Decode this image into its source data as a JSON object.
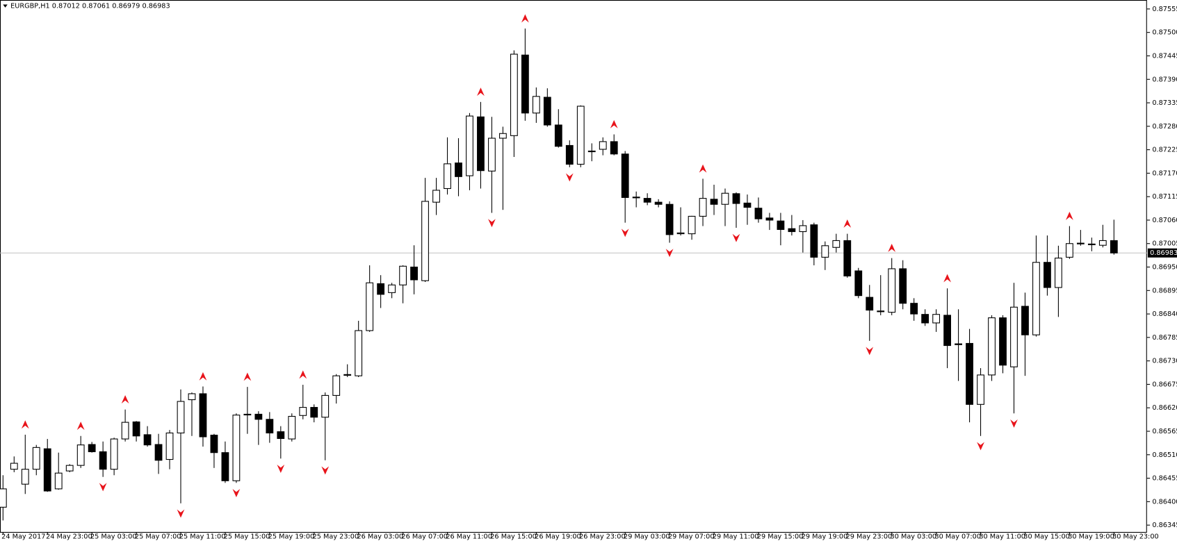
{
  "chart_data": {
    "type": "candlestick",
    "symbol": "EURGBP,H1",
    "categories": [
      "24 May 2017",
      null,
      null,
      null,
      "24 May 23:00",
      null,
      null,
      null,
      "25 May 03:00",
      null,
      null,
      null,
      "25 May 07:00",
      null,
      null,
      null,
      "25 May 11:00",
      null,
      null,
      null,
      "25 May 15:00",
      null,
      null,
      null,
      "25 May 19:00",
      null,
      null,
      null,
      "25 May 23:00",
      null,
      null,
      null,
      "26 May 03:00",
      null,
      null,
      null,
      "26 May 07:00",
      null,
      null,
      null,
      "26 May 11:00",
      null,
      null,
      null,
      "26 May 15:00",
      null,
      null,
      null,
      "26 May 19:00",
      null,
      null,
      null,
      "26 May 23:00",
      null,
      null,
      null,
      "29 May 03:00",
      null,
      null,
      null,
      "29 May 07:00",
      null,
      null,
      null,
      "29 May 11:00",
      null,
      null,
      null,
      "29 May 15:00",
      null,
      null,
      null,
      "29 May 19:00",
      null,
      null,
      null,
      "29 May 23:00",
      null,
      null,
      null,
      "30 May 03:00",
      null,
      null,
      null,
      "30 May 07:00",
      null,
      null,
      null,
      "30 May 11:00",
      null,
      null,
      null,
      "30 May 15:00",
      null,
      null,
      null,
      "30 May 19:00",
      null,
      null,
      null,
      "30 May 23:00"
    ],
    "open": [
      0.86387,
      0.86476,
      0.86441,
      0.86476,
      0.86524,
      0.8643,
      0.86472,
      0.86485,
      0.86534,
      0.86517,
      0.86476,
      0.86547,
      0.86587,
      0.86557,
      0.86534,
      0.86499,
      0.86561,
      0.86639,
      0.86653,
      0.86556,
      0.86515,
      0.86449,
      0.86605,
      0.86605,
      0.86593,
      0.86564,
      0.86547,
      0.86602,
      0.86621,
      0.86598,
      0.86649,
      0.86697,
      0.86695,
      0.86801,
      0.86911,
      0.8689,
      0.86908,
      0.8695,
      0.86918,
      0.87102,
      0.87134,
      0.87194,
      0.87164,
      0.87302,
      0.87175,
      0.87252,
      0.87258,
      0.87447,
      0.87311,
      0.87348,
      0.87283,
      0.87235,
      0.87191,
      0.87222,
      0.87226,
      0.87244,
      0.87215,
      0.87114,
      0.87111,
      0.87102,
      0.87097,
      0.87028,
      0.87028,
      0.87069,
      0.87109,
      0.87097,
      0.87122,
      0.871,
      0.87088,
      0.87065,
      0.87058,
      0.8704,
      0.87033,
      0.87049,
      0.86973,
      0.86996,
      0.87012,
      0.86941,
      0.86879,
      0.86847,
      0.86844,
      0.86946,
      0.86865,
      0.86839,
      0.86819,
      0.86837,
      0.8677,
      0.86771,
      0.86628,
      0.86697,
      0.86831,
      0.86716,
      0.86858,
      0.86791,
      0.86961,
      0.86902,
      0.86973,
      0.87005,
      0.87003,
      0.87001,
      0.87012
    ],
    "high": [
      0.86462,
      0.86506,
      0.86557,
      0.86533,
      0.86547,
      0.86515,
      0.86488,
      0.86554,
      0.8654,
      0.86541,
      0.8655,
      0.86616,
      0.86589,
      0.86577,
      0.86559,
      0.86568,
      0.86663,
      0.86656,
      0.8667,
      0.86559,
      0.86541,
      0.86607,
      0.86669,
      0.86612,
      0.8661,
      0.86577,
      0.86607,
      0.86674,
      0.86628,
      0.86656,
      0.86699,
      0.86722,
      0.86824,
      0.86954,
      0.86931,
      0.86913,
      0.86954,
      0.87001,
      0.87159,
      0.87159,
      0.87254,
      0.87252,
      0.87311,
      0.87337,
      0.87302,
      0.87279,
      0.87458,
      0.87509,
      0.87371,
      0.87369,
      0.8732,
      0.87247,
      0.87329,
      0.8724,
      0.87254,
      0.87261,
      0.87222,
      0.87127,
      0.87123,
      0.87109,
      0.87104,
      0.8709,
      0.8707,
      0.87157,
      0.87143,
      0.87134,
      0.87125,
      0.8712,
      0.87113,
      0.87077,
      0.87077,
      0.87072,
      0.8706,
      0.87054,
      0.8701,
      0.87028,
      0.87028,
      0.86948,
      0.86908,
      0.86931,
      0.86971,
      0.86966,
      0.86877,
      0.86851,
      0.86851,
      0.869,
      0.86851,
      0.86805,
      0.86713,
      0.86837,
      0.86837,
      0.86913,
      0.8689,
      0.87024,
      0.87024,
      0.87,
      0.87046,
      0.87037,
      0.87019,
      0.87049,
      0.87061
    ],
    "low": [
      0.86356,
      0.86469,
      0.86418,
      0.86462,
      0.86423,
      0.86428,
      0.86469,
      0.86479,
      0.86515,
      0.86458,
      0.86462,
      0.86541,
      0.86541,
      0.86529,
      0.86465,
      0.86476,
      0.86396,
      0.86554,
      0.86529,
      0.86479,
      0.86444,
      0.86444,
      0.86559,
      0.86533,
      0.86538,
      0.86501,
      0.86541,
      0.86593,
      0.86586,
      0.86497,
      0.8663,
      0.86692,
      0.86692,
      0.86798,
      0.86854,
      0.86877,
      0.86865,
      0.86886,
      0.86915,
      0.87072,
      0.8712,
      0.87116,
      0.8713,
      0.87134,
      0.87077,
      0.87084,
      0.87208,
      0.87293,
      0.87288,
      0.87279,
      0.8723,
      0.87184,
      0.87184,
      0.87198,
      0.87212,
      0.87212,
      0.87054,
      0.8709,
      0.87095,
      0.8709,
      0.87007,
      0.87024,
      0.87014,
      0.87046,
      0.87072,
      0.87046,
      0.87042,
      0.87049,
      0.87054,
      0.87037,
      0.87001,
      0.87024,
      0.86984,
      0.86954,
      0.86943,
      0.86984,
      0.86925,
      0.86877,
      0.86777,
      0.86837,
      0.86837,
      0.86851,
      0.86824,
      0.86812,
      0.86798,
      0.86713,
      0.86683,
      0.86586,
      0.86554,
      0.86683,
      0.86701,
      0.86607,
      0.86695,
      0.86787,
      0.86883,
      0.86833,
      0.86969,
      0.87,
      0.86987,
      0.86996,
      0.86979
    ],
    "close": [
      0.8643,
      0.8649,
      0.86476,
      0.86527,
      0.86425,
      0.86467,
      0.86485,
      0.86533,
      0.86517,
      0.86476,
      0.86547,
      0.86586,
      0.86554,
      0.86533,
      0.86497,
      0.86561,
      0.86635,
      0.86653,
      0.86552,
      0.86515,
      0.86449,
      0.86603,
      0.86604,
      0.86593,
      0.86561,
      0.86548,
      0.866,
      0.86621,
      0.86598,
      0.86649,
      0.86695,
      0.86698,
      0.86801,
      0.86913,
      0.86886,
      0.86908,
      0.86952,
      0.8692,
      0.87104,
      0.8713,
      0.87192,
      0.87162,
      0.87304,
      0.87176,
      0.87252,
      0.87263,
      0.87449,
      0.87311,
      0.8735,
      0.87283,
      0.87233,
      0.87191,
      0.87327,
      0.87221,
      0.87244,
      0.87215,
      0.87113,
      0.87113,
      0.87102,
      0.87097,
      0.87026,
      0.8703,
      0.87069,
      0.87111,
      0.87097,
      0.87123,
      0.87099,
      0.8709,
      0.87063,
      0.8706,
      0.87038,
      0.87033,
      0.87047,
      0.86973,
      0.87,
      0.87012,
      0.86929,
      0.86883,
      0.86849,
      0.86846,
      0.86946,
      0.86865,
      0.8684,
      0.86819,
      0.86839,
      0.86766,
      0.86768,
      0.86628,
      0.86697,
      0.86831,
      0.8672,
      0.86856,
      0.86791,
      0.86961,
      0.86902,
      0.86971,
      0.87005,
      0.87006,
      0.87004,
      0.87012,
      0.86983
    ],
    "up_color": "#ffffff",
    "down_color": "#000000",
    "fractals": {
      "color": "#e8141b",
      "up": [
        null,
        null,
        0.86557,
        null,
        null,
        null,
        null,
        0.86554,
        null,
        null,
        null,
        0.86616,
        null,
        null,
        null,
        null,
        null,
        null,
        0.8667,
        null,
        null,
        null,
        0.86669,
        null,
        null,
        null,
        null,
        0.86674,
        null,
        null,
        null,
        null,
        null,
        null,
        null,
        null,
        null,
        null,
        null,
        null,
        null,
        null,
        null,
        0.87337,
        null,
        null,
        null,
        0.87509,
        null,
        null,
        null,
        null,
        null,
        null,
        null,
        0.87261,
        null,
        null,
        null,
        null,
        null,
        null,
        null,
        0.87157,
        null,
        null,
        null,
        null,
        null,
        null,
        null,
        null,
        null,
        null,
        null,
        null,
        0.87028,
        null,
        null,
        null,
        0.86971,
        null,
        null,
        null,
        null,
        0.869,
        null,
        null,
        null,
        null,
        null,
        null,
        null,
        null,
        null,
        null,
        0.87046,
        null,
        null,
        null,
        null
      ],
      "down": [
        null,
        null,
        null,
        null,
        null,
        null,
        null,
        null,
        null,
        0.86458,
        null,
        null,
        null,
        null,
        null,
        null,
        0.86396,
        null,
        null,
        null,
        null,
        0.86444,
        null,
        null,
        null,
        0.86501,
        null,
        null,
        null,
        0.86497,
        null,
        null,
        null,
        null,
        null,
        null,
        null,
        null,
        null,
        null,
        null,
        null,
        null,
        null,
        0.87077,
        null,
        null,
        null,
        null,
        null,
        null,
        0.87184,
        null,
        null,
        null,
        null,
        0.87054,
        null,
        null,
        null,
        0.87007,
        null,
        null,
        null,
        null,
        null,
        0.87042,
        null,
        null,
        null,
        null,
        null,
        null,
        null,
        null,
        null,
        null,
        null,
        0.86777,
        null,
        null,
        null,
        null,
        null,
        null,
        null,
        null,
        null,
        0.86554,
        null,
        null,
        0.86607,
        null,
        null,
        null,
        null,
        null,
        null,
        null,
        null,
        null
      ]
    },
    "ylim": [
      0.86329,
      0.87576
    ],
    "yticks": [
      0.87555,
      {
        "value": 0.875,
        "label": "0.87500"
      },
      0.87445,
      {
        "value": 0.8739,
        "label": "0.87390"
      },
      0.87335,
      {
        "value": 0.8728,
        "label": "0.87280"
      },
      0.87225,
      {
        "value": 0.8717,
        "label": "0.87170"
      },
      0.87115,
      {
        "value": 0.8706,
        "label": "0.87060"
      },
      0.87005,
      {
        "value": 0.8695,
        "label": "0.86950"
      },
      0.86895,
      {
        "value": 0.8684,
        "label": "0.86840"
      },
      0.86785,
      {
        "value": 0.8673,
        "label": "0.86730"
      },
      0.86675,
      {
        "value": 0.8662,
        "label": "0.86620"
      },
      0.86565,
      {
        "value": 0.8651,
        "label": "0.86510"
      },
      0.86455,
      {
        "value": 0.864,
        "label": "0.86400"
      },
      0.86345
    ]
  }
}
